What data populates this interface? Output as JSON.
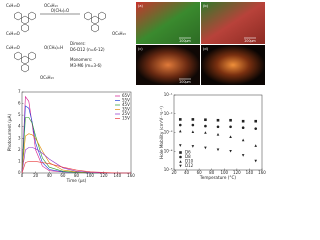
{
  "structure": {
    "labels": [
      "C₆H₁₃O",
      "OC₆H₁₃",
      "O(CH₂)ₙO",
      "C₆H₁₃O",
      "OC₆H₁₃",
      "C₆H₁₃O",
      "OC₆H₁₃",
      "O(CH₂)ₘH",
      "Dimers:",
      "D6-D12 (n=6-12)",
      "Monomers:",
      "M3-M6 (m=3-6)"
    ]
  },
  "images": {
    "panels": [
      "(a)",
      "(b)",
      "(c)",
      "(d)"
    ],
    "scale_bars": [
      "200μm",
      "200μm",
      "200μm"
    ]
  },
  "chart_data": [
    {
      "type": "line",
      "xlabel": "Time (μs)",
      "ylabel": "Photocurrent (μA)",
      "x": [
        0,
        5,
        10,
        15,
        20,
        30,
        40,
        60,
        80,
        100,
        120,
        140,
        160
      ],
      "xlim": [
        0,
        160
      ],
      "xticks": [
        0,
        20,
        40,
        60,
        80,
        100,
        120,
        140,
        160
      ],
      "ylim": [
        0,
        7
      ],
      "yticks": [
        0,
        1,
        2,
        3,
        4,
        5,
        6,
        7
      ],
      "legend": "upper right",
      "series": [
        {
          "name": "65V",
          "color": "#d6188f",
          "values": [
            0,
            6.6,
            6.2,
            4.2,
            2.0,
            0.6,
            0.2,
            0.1,
            0.05,
            0,
            0,
            0,
            0
          ]
        },
        {
          "name": "55V",
          "color": "#1f3fd8",
          "values": [
            0,
            5.8,
            5.6,
            4.4,
            2.6,
            0.9,
            0.3,
            0.1,
            0.05,
            0,
            0,
            0,
            0
          ]
        },
        {
          "name": "45V",
          "color": "#2a9d2a",
          "values": [
            0,
            4.8,
            4.8,
            4.3,
            3.2,
            1.3,
            0.5,
            0.15,
            0.05,
            0,
            0,
            0,
            0
          ]
        },
        {
          "name": "35V",
          "color": "#e08a00",
          "values": [
            0,
            3.2,
            3.4,
            3.3,
            3.0,
            1.9,
            0.9,
            0.25,
            0.1,
            0.05,
            0,
            0,
            0
          ]
        },
        {
          "name": "25V",
          "color": "#8e2fc9",
          "values": [
            0,
            2.0,
            2.2,
            2.2,
            2.1,
            1.7,
            1.2,
            0.45,
            0.15,
            0.05,
            0,
            0,
            0
          ]
        },
        {
          "name": "15V",
          "color": "#e8383a",
          "values": [
            0,
            0.9,
            1.0,
            1.0,
            1.0,
            0.9,
            0.8,
            0.5,
            0.25,
            0.1,
            0.05,
            0,
            0
          ]
        }
      ]
    },
    {
      "type": "scatter",
      "xlabel": "Temperature (°C)",
      "ylabel": "Hole Mobility (cm²V⁻¹s⁻¹)",
      "x": [
        30,
        50,
        70,
        90,
        110,
        130,
        150
      ],
      "xlim": [
        20,
        160
      ],
      "xticks": [
        20,
        40,
        60,
        80,
        100,
        120,
        140,
        160
      ],
      "ylim": [
        1e-05,
        0.1
      ],
      "log_scale": true,
      "legend": "lower left",
      "yticks": [
        {
          "value": 1e-05,
          "label": "10⁻⁵"
        },
        {
          "value": 0.0001,
          "label": "10⁻⁴"
        },
        {
          "value": 0.001,
          "label": "10⁻³"
        },
        {
          "value": 0.01,
          "label": "10⁻²"
        },
        {
          "value": 0.1,
          "label": "10⁻¹"
        }
      ],
      "series": [
        {
          "name": "D6",
          "color": "#222222",
          "marker": "square",
          "values": [
            0.005,
            0.005,
            0.0048,
            0.0045,
            0.0045,
            0.004,
            0.004
          ]
        },
        {
          "name": "D8",
          "color": "#222222",
          "marker": "circle",
          "values": [
            0.0025,
            0.0025,
            0.0022,
            0.002,
            0.002,
            0.0018,
            0.0016
          ]
        },
        {
          "name": "D10",
          "color": "#222222",
          "marker": "triangle",
          "values": [
            0.0012,
            0.0011,
            0.001,
            0.0008,
            0.0006,
            0.0004,
            0.0002
          ]
        },
        {
          "name": "D12",
          "color": "#222222",
          "marker": "triangle-down",
          "values": [
            0.0002,
            0.00018,
            0.00015,
            0.00012,
            0.0001,
            6e-05,
            3e-05
          ]
        }
      ]
    }
  ]
}
